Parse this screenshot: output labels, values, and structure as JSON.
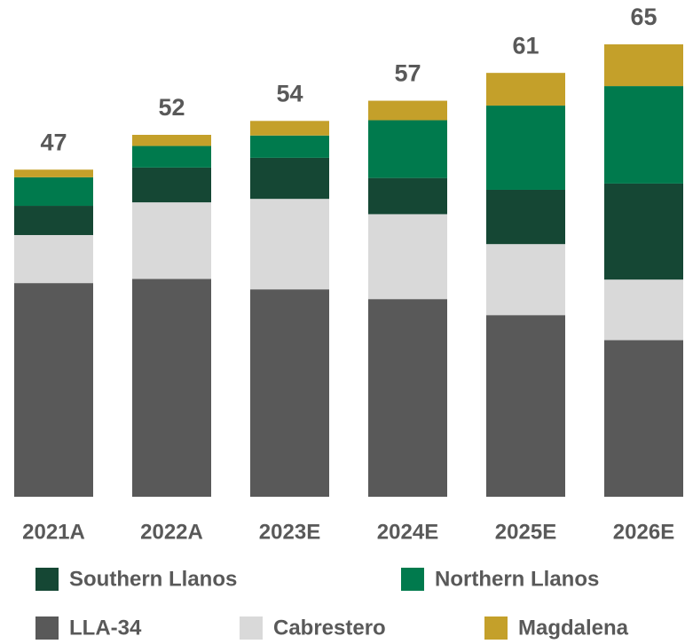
{
  "chart_data": {
    "type": "stacked_bar",
    "categories": [
      "2021A",
      "2022A",
      "2023E",
      "2024E",
      "2025E",
      "2026E"
    ],
    "series": [
      {
        "name": "LLA-34",
        "color": "#595959",
        "values": [
          30.7,
          31.3,
          29.8,
          28.4,
          26.1,
          22.5
        ]
      },
      {
        "name": "Cabrestero",
        "color": "#d9d9d9",
        "values": [
          6.9,
          11.0,
          13.0,
          12.2,
          10.2,
          8.7
        ]
      },
      {
        "name": "Southern Llanos",
        "color": "#154734",
        "values": [
          4.2,
          5.0,
          5.9,
          5.2,
          7.8,
          13.8
        ]
      },
      {
        "name": "Northern Llanos",
        "color": "#007a4d",
        "values": [
          4.1,
          3.1,
          3.2,
          8.3,
          12.1,
          14.0
        ]
      },
      {
        "name": "Magdalena",
        "color": "#c4a02a",
        "values": [
          1.1,
          1.6,
          2.1,
          2.8,
          4.7,
          6.0
        ]
      }
    ],
    "totals": [
      47,
      52,
      54,
      57,
      61,
      65
    ]
  }
}
